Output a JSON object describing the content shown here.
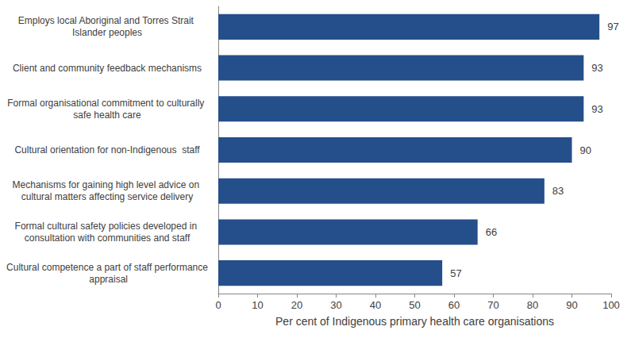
{
  "chart_data": {
    "type": "bar",
    "orientation": "horizontal",
    "categories": [
      "Employs local Aboriginal and Torres Strait Islander peoples",
      "Client and community feedback mechanisms",
      "Formal organisational commitment to culturally safe health care",
      "Cultural orientation for non-Indigenous  staff",
      "Mechanisms for gaining high level advice on cultural matters affecting service delivery",
      "Formal cultural safety policies developed in consultation with communities and staff",
      "Cultural competence a part of staff performance appraisal"
    ],
    "values": [
      97,
      93,
      93,
      90,
      83,
      66,
      57
    ],
    "color": "#254f8a",
    "x_label": "Per cent of Indigenous primary health care organisations",
    "xlim": [
      0,
      100
    ],
    "xticks": [
      0,
      10,
      20,
      30,
      40,
      50,
      60,
      70,
      80,
      90,
      100
    ],
    "grid": false,
    "data_labels": true
  }
}
